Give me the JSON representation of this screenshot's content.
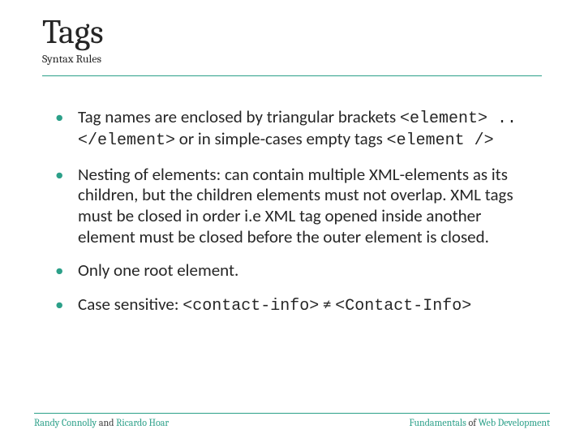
{
  "colors": {
    "accent": "#2ca089",
    "text": "#262626",
    "background": "#ffffff"
  },
  "typography": {
    "title_font": "Cambria",
    "body_font": "Calibri",
    "mono_font": "Courier New",
    "title_size_pt": 42,
    "subtitle_size_pt": 14,
    "body_size_pt": 21,
    "footer_size_pt": 12
  },
  "header": {
    "title": "Tags",
    "subtitle": "Syntax Rules"
  },
  "bullets": {
    "b1": {
      "t1": "Tag names are enclosed by triangular brackets ",
      "code1": "<element> .. </element>",
      "t2": " or in simple-cases empty tags ",
      "code2": "<element />"
    },
    "b2": "Nesting of elements: can contain multiple XML-elements as its children, but the children elements must not overlap. XML tags must be closed in order i.e XML tag opened inside another element must be closed before the outer element is closed.",
    "b3": "Only one root element.",
    "b4": {
      "t1": "Case sensitive: ",
      "code1": "<contact-info>",
      "t2": " ≠ ",
      "code2": "<Contact-Info>"
    }
  },
  "footer": {
    "left": {
      "a1": "Randy Connolly",
      "mid": " and ",
      "a2": "Ricardo Hoar"
    },
    "right": {
      "w1": "Fundamentals",
      "mid": " of ",
      "w2": "Web Development"
    }
  }
}
